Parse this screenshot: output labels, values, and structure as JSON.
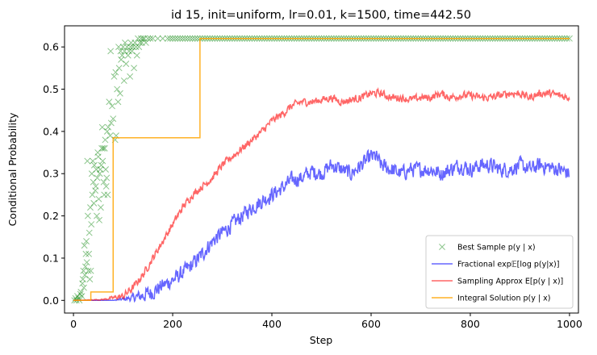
{
  "chart_data": {
    "type": "line",
    "title": "id 15, init=uniform, lr=0.01, k=1500, time=442.50",
    "xlabel": "Step",
    "ylabel": "Conditional Probability",
    "xlim": [
      -18,
      1018
    ],
    "ylim": [
      -0.03,
      0.65
    ],
    "xticks": [
      0,
      200,
      400,
      600,
      800,
      1000
    ],
    "yticks": [
      0.0,
      0.1,
      0.2,
      0.3,
      0.4,
      0.5,
      0.6
    ],
    "grid": false,
    "legend_position": "lower-right",
    "series": [
      {
        "name": "Best Sample p(y | x)",
        "kind": "scatter",
        "marker": "x",
        "color": "#008000",
        "points": [
          [
            2,
            0.0
          ],
          [
            4,
            0.005
          ],
          [
            6,
            0.0
          ],
          [
            8,
            0.01
          ],
          [
            10,
            0.005
          ],
          [
            12,
            0.0
          ],
          [
            14,
            0.015
          ],
          [
            15,
            0.02
          ],
          [
            17,
            0.01
          ],
          [
            18,
            0.04
          ],
          [
            19,
            0.05
          ],
          [
            20,
            0.07
          ],
          [
            21,
            0.03
          ],
          [
            22,
            0.13
          ],
          [
            23,
            0.06
          ],
          [
            24,
            0.08
          ],
          [
            25,
            0.11
          ],
          [
            26,
            0.14
          ],
          [
            27,
            0.09
          ],
          [
            28,
            0.33
          ],
          [
            29,
            0.2
          ],
          [
            30,
            0.07
          ],
          [
            31,
            0.11
          ],
          [
            32,
            0.16
          ],
          [
            33,
            0.05
          ],
          [
            34,
            0.22
          ],
          [
            35,
            0.07
          ],
          [
            36,
            0.18
          ],
          [
            37,
            0.3
          ],
          [
            38,
            0.25
          ],
          [
            39,
            0.33
          ],
          [
            40,
            0.28
          ],
          [
            41,
            0.23
          ],
          [
            42,
            0.32
          ],
          [
            44,
            0.26
          ],
          [
            45,
            0.27
          ],
          [
            46,
            0.31
          ],
          [
            47,
            0.2
          ],
          [
            48,
            0.29
          ],
          [
            49,
            0.35
          ],
          [
            50,
            0.34
          ],
          [
            51,
            0.24
          ],
          [
            52,
            0.19
          ],
          [
            53,
            0.3
          ],
          [
            54,
            0.31
          ],
          [
            55,
            0.22
          ],
          [
            56,
            0.32
          ],
          [
            57,
            0.36
          ],
          [
            58,
            0.41
          ],
          [
            59,
            0.33
          ],
          [
            60,
            0.36
          ],
          [
            61,
            0.28
          ],
          [
            62,
            0.25
          ],
          [
            63,
            0.36
          ],
          [
            64,
            0.38
          ],
          [
            65,
            0.31
          ],
          [
            66,
            0.27
          ],
          [
            67,
            0.29
          ],
          [
            68,
            0.4
          ],
          [
            69,
            0.25
          ],
          [
            70,
            0.41
          ],
          [
            72,
            0.47
          ],
          [
            74,
            0.39
          ],
          [
            75,
            0.59
          ],
          [
            76,
            0.42
          ],
          [
            78,
            0.46
          ],
          [
            80,
            0.43
          ],
          [
            82,
            0.53
          ],
          [
            84,
            0.38
          ],
          [
            85,
            0.54
          ],
          [
            86,
            0.39
          ],
          [
            88,
            0.5
          ],
          [
            90,
            0.47
          ],
          [
            91,
            0.6
          ],
          [
            92,
            0.55
          ],
          [
            94,
            0.49
          ],
          [
            95,
            0.59
          ],
          [
            96,
            0.57
          ],
          [
            98,
            0.58
          ],
          [
            100,
            0.6
          ],
          [
            102,
            0.52
          ],
          [
            103,
            0.59
          ],
          [
            104,
            0.61
          ],
          [
            106,
            0.56
          ],
          [
            108,
            0.6
          ],
          [
            110,
            0.58
          ],
          [
            112,
            0.59
          ],
          [
            114,
            0.53
          ],
          [
            115,
            0.6
          ],
          [
            116,
            0.61
          ],
          [
            118,
            0.59
          ],
          [
            120,
            0.6
          ],
          [
            122,
            0.55
          ],
          [
            124,
            0.61
          ],
          [
            126,
            0.6
          ],
          [
            128,
            0.58
          ],
          [
            130,
            0.62
          ],
          [
            132,
            0.6
          ],
          [
            134,
            0.61
          ],
          [
            136,
            0.62
          ],
          [
            138,
            0.61
          ],
          [
            140,
            0.62
          ],
          [
            143,
            0.62
          ],
          [
            146,
            0.61
          ],
          [
            150,
            0.62
          ],
          [
            155,
            0.62
          ],
          [
            160,
            0.62
          ],
          [
            170,
            0.62
          ],
          [
            180,
            0.62
          ],
          [
            190,
            0.62
          ]
        ],
        "tail": {
          "from": 195,
          "to": 1000,
          "value": 0.62
        }
      },
      {
        "name": "Fractional exp𝔼[log p(y|x)]",
        "kind": "line",
        "color": "#0000ff",
        "points": [
          [
            0,
            0.0
          ],
          [
            80,
            0.0
          ],
          [
            100,
            0.003
          ],
          [
            120,
            0.006
          ],
          [
            140,
            0.012
          ],
          [
            160,
            0.02
          ],
          [
            180,
            0.035
          ],
          [
            200,
            0.048
          ],
          [
            220,
            0.065
          ],
          [
            240,
            0.085
          ],
          [
            260,
            0.11
          ],
          [
            280,
            0.14
          ],
          [
            300,
            0.16
          ],
          [
            320,
            0.18
          ],
          [
            340,
            0.2
          ],
          [
            360,
            0.22
          ],
          [
            380,
            0.235
          ],
          [
            400,
            0.25
          ],
          [
            420,
            0.265
          ],
          [
            440,
            0.285
          ],
          [
            460,
            0.29
          ],
          [
            480,
            0.305
          ],
          [
            500,
            0.3
          ],
          [
            520,
            0.32
          ],
          [
            540,
            0.31
          ],
          [
            560,
            0.3
          ],
          [
            580,
            0.32
          ],
          [
            600,
            0.34
          ],
          [
            610,
            0.34
          ],
          [
            620,
            0.32
          ],
          [
            640,
            0.31
          ],
          [
            660,
            0.3
          ],
          [
            680,
            0.31
          ],
          [
            700,
            0.31
          ],
          [
            720,
            0.31
          ],
          [
            740,
            0.3
          ],
          [
            760,
            0.31
          ],
          [
            780,
            0.32
          ],
          [
            800,
            0.31
          ],
          [
            820,
            0.32
          ],
          [
            840,
            0.32
          ],
          [
            860,
            0.31
          ],
          [
            880,
            0.31
          ],
          [
            900,
            0.32
          ],
          [
            920,
            0.31
          ],
          [
            940,
            0.32
          ],
          [
            960,
            0.315
          ],
          [
            980,
            0.31
          ],
          [
            1000,
            0.3
          ]
        ],
        "noise": 0.016
      },
      {
        "name": "Sampling Approx E[p(y | x)]",
        "kind": "line",
        "color": "#ff0000",
        "points": [
          [
            0,
            0.0
          ],
          [
            60,
            0.002
          ],
          [
            100,
            0.01
          ],
          [
            120,
            0.03
          ],
          [
            140,
            0.06
          ],
          [
            160,
            0.1
          ],
          [
            180,
            0.14
          ],
          [
            200,
            0.18
          ],
          [
            220,
            0.22
          ],
          [
            240,
            0.25
          ],
          [
            260,
            0.27
          ],
          [
            280,
            0.29
          ],
          [
            300,
            0.32
          ],
          [
            320,
            0.34
          ],
          [
            340,
            0.36
          ],
          [
            360,
            0.38
          ],
          [
            380,
            0.4
          ],
          [
            400,
            0.425
          ],
          [
            420,
            0.44
          ],
          [
            440,
            0.46
          ],
          [
            460,
            0.47
          ],
          [
            480,
            0.47
          ],
          [
            500,
            0.475
          ],
          [
            520,
            0.48
          ],
          [
            540,
            0.47
          ],
          [
            560,
            0.475
          ],
          [
            580,
            0.48
          ],
          [
            600,
            0.49
          ],
          [
            620,
            0.49
          ],
          [
            640,
            0.48
          ],
          [
            660,
            0.48
          ],
          [
            680,
            0.475
          ],
          [
            700,
            0.48
          ],
          [
            720,
            0.48
          ],
          [
            740,
            0.49
          ],
          [
            760,
            0.48
          ],
          [
            780,
            0.485
          ],
          [
            800,
            0.485
          ],
          [
            820,
            0.48
          ],
          [
            840,
            0.48
          ],
          [
            860,
            0.485
          ],
          [
            880,
            0.49
          ],
          [
            900,
            0.49
          ],
          [
            920,
            0.48
          ],
          [
            940,
            0.49
          ],
          [
            960,
            0.49
          ],
          [
            980,
            0.485
          ],
          [
            1000,
            0.48
          ]
        ],
        "noise": 0.008
      },
      {
        "name": "Integral Solution p(y | x)",
        "kind": "step",
        "color": "#ffa500",
        "points": [
          [
            0,
            0.0
          ],
          [
            35,
            0.0
          ],
          [
            35,
            0.02
          ],
          [
            80,
            0.02
          ],
          [
            80,
            0.385
          ],
          [
            255,
            0.385
          ],
          [
            255,
            0.62
          ],
          [
            1000,
            0.62
          ]
        ]
      }
    ]
  }
}
